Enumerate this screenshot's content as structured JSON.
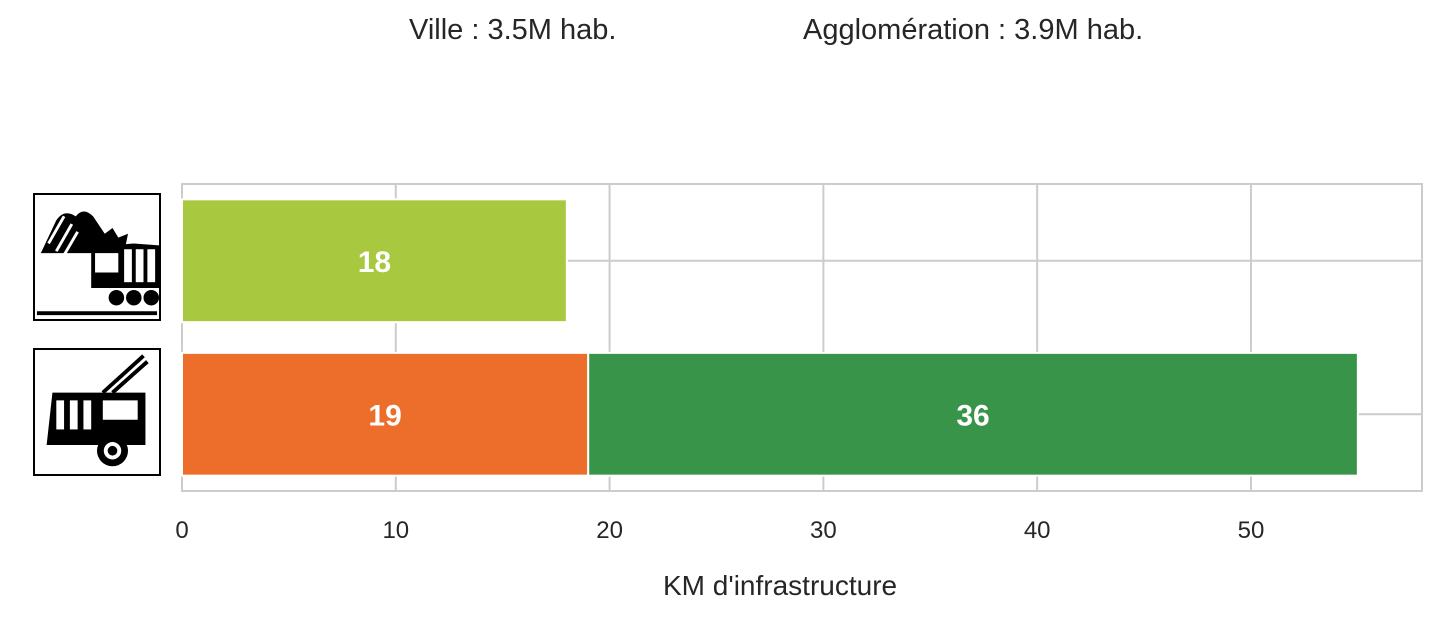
{
  "header": {
    "city_population": "Ville : 3.5M hab.",
    "metro_population": "Agglomération : 3.9M hab."
  },
  "icons": {
    "row_1": "mountain-train-icon",
    "row_2": "trolleybus-icon"
  },
  "chart_data": {
    "type": "bar",
    "orientation": "horizontal",
    "stacked": true,
    "categories": [
      "train",
      "trolleybus"
    ],
    "segments": [
      {
        "category": "train",
        "start": 0,
        "value": 18,
        "label": "18",
        "color": "#a8c83f"
      },
      {
        "category": "trolleybus",
        "start": 0,
        "value": 19,
        "label": "19",
        "color": "#ec6e2a"
      },
      {
        "category": "trolleybus",
        "start": 19,
        "value": 36,
        "label": "36",
        "color": "#379448"
      }
    ],
    "xlabel": "KM d'infrastructure",
    "ylabel": "",
    "xlim": [
      0,
      58
    ],
    "xticks": [
      0,
      10,
      20,
      30,
      40,
      50
    ],
    "grid": true,
    "legend": "none"
  }
}
